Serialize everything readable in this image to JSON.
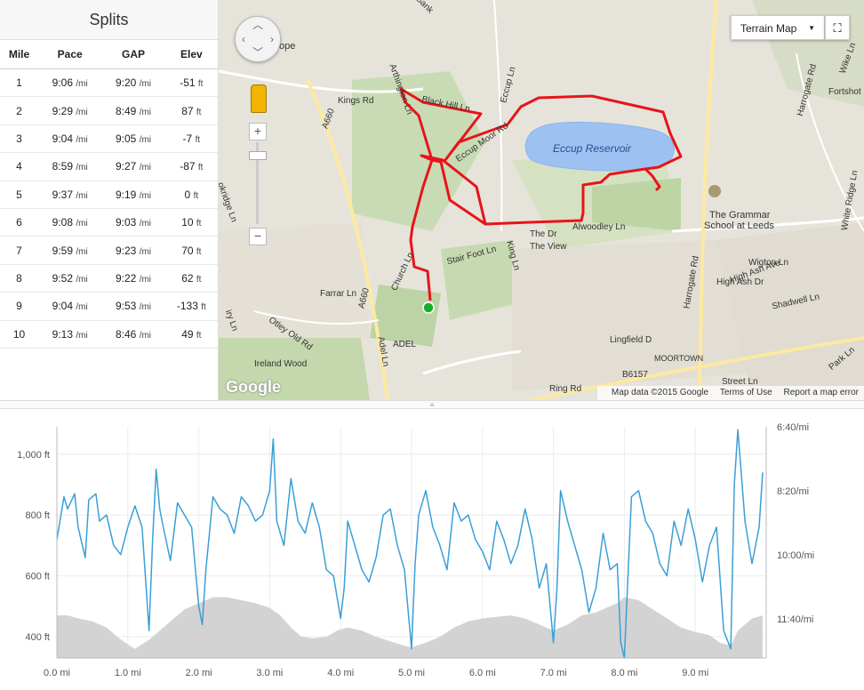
{
  "splits": {
    "title": "Splits",
    "columns": [
      "Mile",
      "Pace",
      "GAP",
      "Elev"
    ],
    "rows": [
      {
        "mile": "1",
        "pace": "9:06",
        "gap": "9:20",
        "elev": "-51"
      },
      {
        "mile": "2",
        "pace": "9:29",
        "gap": "8:49",
        "elev": "87"
      },
      {
        "mile": "3",
        "pace": "9:04",
        "gap": "9:05",
        "elev": "-7"
      },
      {
        "mile": "4",
        "pace": "8:59",
        "gap": "9:27",
        "elev": "-87"
      },
      {
        "mile": "5",
        "pace": "9:37",
        "gap": "9:19",
        "elev": "0"
      },
      {
        "mile": "6",
        "pace": "9:08",
        "gap": "9:03",
        "elev": "10"
      },
      {
        "mile": "7",
        "pace": "9:59",
        "gap": "9:23",
        "elev": "70"
      },
      {
        "mile": "8",
        "pace": "9:52",
        "gap": "9:22",
        "elev": "62"
      },
      {
        "mile": "9",
        "pace": "9:04",
        "gap": "9:53",
        "elev": "-133"
      },
      {
        "mile": "10",
        "pace": "9:13",
        "gap": "8:46",
        "elev": "49"
      }
    ],
    "pace_unit": "/mi",
    "elev_unit": "ft"
  },
  "map": {
    "map_type_label": "Terrain Map",
    "fullscreen_icon": "fullscreen-icon",
    "attribution": "Map data ©2015 Google",
    "terms": "Terms of Use",
    "report": "Report a map error",
    "logo": "Google",
    "labels": {
      "reservoir": "Eccup Reservoir",
      "kings_rd": "Kings Rd",
      "a660_top": "A660",
      "a660_mid": "A660",
      "arthington": "Arthington Ln",
      "eccup_ln": "Eccup Ln",
      "black_hill": "Black Hill Ln",
      "eccup_moor": "Eccup Moor Rd",
      "alwoodley": "Alwoodley Ln",
      "the_dr": "The Dr",
      "the_view": "The View",
      "king_ln": "King Ln",
      "stair_foot": "Stair Foot Ln",
      "church_ln": "Church Ln",
      "farrar": "Farrar Ln",
      "otley_old": "Otley Old Rd",
      "ireland_wood": "Ireland Wood",
      "adel": "ADEL",
      "adel_ln": "Adel Ln",
      "harrogate_rd_top": "Harrogate Rd",
      "harrogate_rd_mid": "Harrogate Rd",
      "grammar_school_1": "The Grammar",
      "grammar_school_2": "School at Leeds",
      "wigton": "Wigton Ln",
      "high_ash_ave": "High Ash Ave",
      "high_ash_dr": "High Ash Dr",
      "shadwell": "Shadwell Ln",
      "lingfield": "Lingfield D",
      "moortown": "MOORTOWN",
      "b6157": "B6157",
      "ring_rd": "Ring Rd",
      "street_ln": "Street Ln",
      "wike_ln": "Wike Ln",
      "fortshot": "Fortshot",
      "white_ridge": "White Ridge Ln",
      "hope": "ope",
      "bank": "Bank",
      "okridge": "okridge Ln",
      "iry_ln": "iry Ln",
      "park_ln": "Park Ln"
    }
  },
  "chart_data": {
    "type": "line",
    "x_unit": "mi",
    "xlim": [
      0,
      10
    ],
    "xticks": [
      "0.0 mi",
      "1.0 mi",
      "2.0 mi",
      "3.0 mi",
      "4.0 mi",
      "5.0 mi",
      "6.0 mi",
      "7.0 mi",
      "8.0 mi",
      "9.0 mi"
    ],
    "y_left_ticks": [
      "1,000 ft",
      "800 ft",
      "600 ft",
      "400 ft"
    ],
    "y_left_values": [
      1000,
      800,
      600,
      400
    ],
    "ylim_left": [
      330,
      1090
    ],
    "y_right_ticks": [
      "6:40/mi",
      "8:20/mi",
      "10:00/mi",
      "11:40/mi"
    ],
    "series": [
      {
        "kind": "elevation-area",
        "color": "#d3d3d3",
        "x": [
          0,
          0.15,
          0.3,
          0.5,
          0.7,
          0.85,
          1.0,
          1.1,
          1.3,
          1.45,
          1.6,
          1.8,
          2.0,
          2.2,
          2.4,
          2.6,
          2.8,
          3.0,
          3.15,
          3.3,
          3.45,
          3.6,
          3.8,
          3.95,
          4.1,
          4.3,
          4.5,
          4.7,
          4.9,
          5.0,
          5.2,
          5.4,
          5.6,
          5.8,
          6.0,
          6.2,
          6.4,
          6.6,
          6.8,
          7.0,
          7.2,
          7.4,
          7.6,
          7.8,
          7.9,
          8.0,
          8.2,
          8.4,
          8.6,
          8.8,
          9.0,
          9.2,
          9.35,
          9.5,
          9.6,
          9.8,
          9.95
        ],
        "y": [
          470,
          470,
          460,
          450,
          430,
          400,
          375,
          360,
          390,
          420,
          450,
          490,
          510,
          530,
          530,
          520,
          510,
          495,
          470,
          430,
          400,
          395,
          400,
          420,
          430,
          420,
          400,
          385,
          370,
          365,
          380,
          400,
          430,
          450,
          460,
          465,
          470,
          460,
          440,
          420,
          440,
          470,
          480,
          500,
          510,
          530,
          520,
          490,
          460,
          430,
          415,
          405,
          380,
          370,
          420,
          460,
          470
        ]
      },
      {
        "kind": "pace-line",
        "color": "#3a9fd8",
        "x": [
          0,
          0.1,
          0.15,
          0.25,
          0.3,
          0.4,
          0.45,
          0.55,
          0.6,
          0.7,
          0.8,
          0.9,
          1.0,
          1.1,
          1.2,
          1.3,
          1.35,
          1.4,
          1.45,
          1.5,
          1.6,
          1.7,
          1.8,
          1.9,
          2.0,
          2.05,
          2.1,
          2.2,
          2.3,
          2.4,
          2.5,
          2.6,
          2.7,
          2.8,
          2.9,
          3.0,
          3.05,
          3.1,
          3.2,
          3.3,
          3.4,
          3.5,
          3.6,
          3.7,
          3.8,
          3.9,
          4.0,
          4.05,
          4.1,
          4.2,
          4.3,
          4.4,
          4.5,
          4.6,
          4.7,
          4.8,
          4.9,
          5.0,
          5.05,
          5.1,
          5.2,
          5.3,
          5.4,
          5.5,
          5.6,
          5.7,
          5.8,
          5.9,
          6.0,
          6.1,
          6.2,
          6.3,
          6.4,
          6.5,
          6.6,
          6.7,
          6.8,
          6.9,
          7.0,
          7.05,
          7.1,
          7.2,
          7.3,
          7.4,
          7.5,
          7.6,
          7.7,
          7.8,
          7.9,
          7.95,
          8.0,
          8.1,
          8.2,
          8.3,
          8.4,
          8.5,
          8.6,
          8.7,
          8.8,
          8.9,
          9.0,
          9.1,
          9.2,
          9.3,
          9.4,
          9.5,
          9.55,
          9.6,
          9.7,
          9.8,
          9.9,
          9.95
        ],
        "y": [
          720,
          860,
          820,
          870,
          760,
          660,
          850,
          870,
          780,
          800,
          700,
          670,
          760,
          830,
          760,
          420,
          720,
          950,
          820,
          760,
          650,
          840,
          800,
          760,
          500,
          440,
          620,
          860,
          820,
          800,
          740,
          860,
          830,
          780,
          800,
          880,
          1050,
          780,
          700,
          920,
          780,
          740,
          840,
          760,
          620,
          600,
          460,
          560,
          780,
          700,
          620,
          580,
          660,
          800,
          820,
          700,
          620,
          360,
          640,
          800,
          880,
          760,
          700,
          620,
          840,
          780,
          800,
          720,
          680,
          620,
          780,
          720,
          640,
          700,
          820,
          720,
          560,
          640,
          380,
          560,
          880,
          780,
          700,
          620,
          480,
          560,
          740,
          620,
          640,
          380,
          330,
          860,
          880,
          780,
          740,
          640,
          600,
          780,
          700,
          820,
          720,
          580,
          700,
          760,
          420,
          360,
          900,
          1080,
          780,
          640,
          760,
          940
        ]
      }
    ]
  }
}
